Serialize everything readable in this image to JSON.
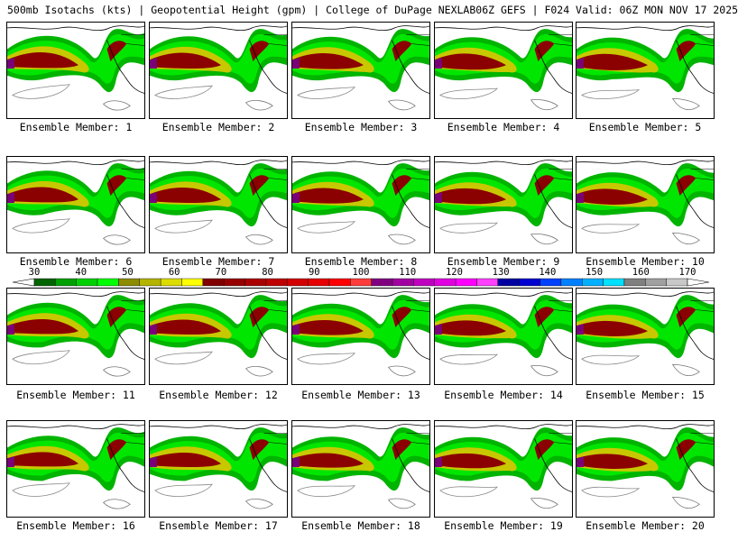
{
  "header": {
    "left": "500mb Isotachs (kts) | Geopotential Height (gpm) | College of DuPage NEXLAB",
    "right": "06Z GEFS | F024 Valid: 06Z MON NOV 17 2025"
  },
  "legend": {
    "labels": [
      "30",
      "40",
      "50",
      "60",
      "70",
      "80",
      "90",
      "100",
      "110",
      "120",
      "130",
      "140",
      "150",
      "160",
      "170"
    ],
    "colors": [
      "#006400",
      "#00a000",
      "#00d000",
      "#00ff00",
      "#8c8c00",
      "#b4b400",
      "#dcdc00",
      "#ffff00",
      "#800000",
      "#960000",
      "#aa0000",
      "#be0000",
      "#d20000",
      "#e60000",
      "#ff0000",
      "#ff3c3c",
      "#800080",
      "#a000a0",
      "#c000c0",
      "#e000e0",
      "#ff00ff",
      "#ff40ff",
      "#0000a0",
      "#0000d0",
      "#0040ff",
      "#0080ff",
      "#00b0ff",
      "#00e0ff",
      "#808080",
      "#a0a0a0",
      "#c8c8c8"
    ]
  },
  "panels": [
    "Ensemble Member: 1",
    "Ensemble Member: 2",
    "Ensemble Member: 3",
    "Ensemble Member: 4",
    "Ensemble Member: 5",
    "Ensemble Member: 6",
    "Ensemble Member: 7",
    "Ensemble Member: 8",
    "Ensemble Member: 9",
    "Ensemble Member: 10",
    "Ensemble Member: 11",
    "Ensemble Member: 12",
    "Ensemble Member: 13",
    "Ensemble Member: 14",
    "Ensemble Member: 15",
    "Ensemble Member: 16",
    "Ensemble Member: 17",
    "Ensemble Member: 18",
    "Ensemble Member: 19",
    "Ensemble Member: 20"
  ]
}
